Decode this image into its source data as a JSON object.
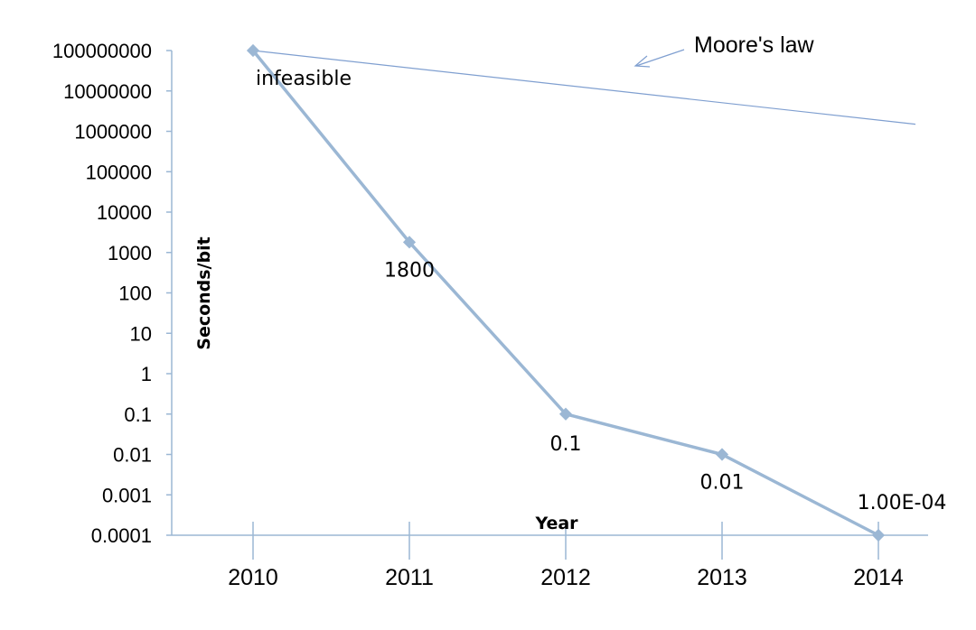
{
  "chart_data": {
    "type": "line",
    "title": "",
    "xlabel": "Year",
    "ylabel": "Seconds/bit",
    "y_scale": "log",
    "ylim": [
      0.0001,
      100000000
    ],
    "y_ticks": [
      "100000000",
      "10000000",
      "1000000",
      "100000",
      "10000",
      "1000",
      "100",
      "10",
      "1",
      "0.1",
      "0.01",
      "0.001",
      "0.0001"
    ],
    "categories": [
      "2010",
      "2011",
      "2012",
      "2013",
      "2014"
    ],
    "series": [
      {
        "values": [
          100000000,
          1800,
          0.1,
          0.01,
          0.0001
        ],
        "data_labels": [
          "infeasible",
          "1800",
          "0.1",
          "0.01",
          "1.00E-04"
        ],
        "color": "#9bb7d4"
      }
    ],
    "trend_line": {
      "label": "Moore's law",
      "start": {
        "x": "2010",
        "y": 100000000
      },
      "end_y": 1500000,
      "color": "#7f9fd0"
    },
    "grid": false,
    "legend": "none"
  }
}
